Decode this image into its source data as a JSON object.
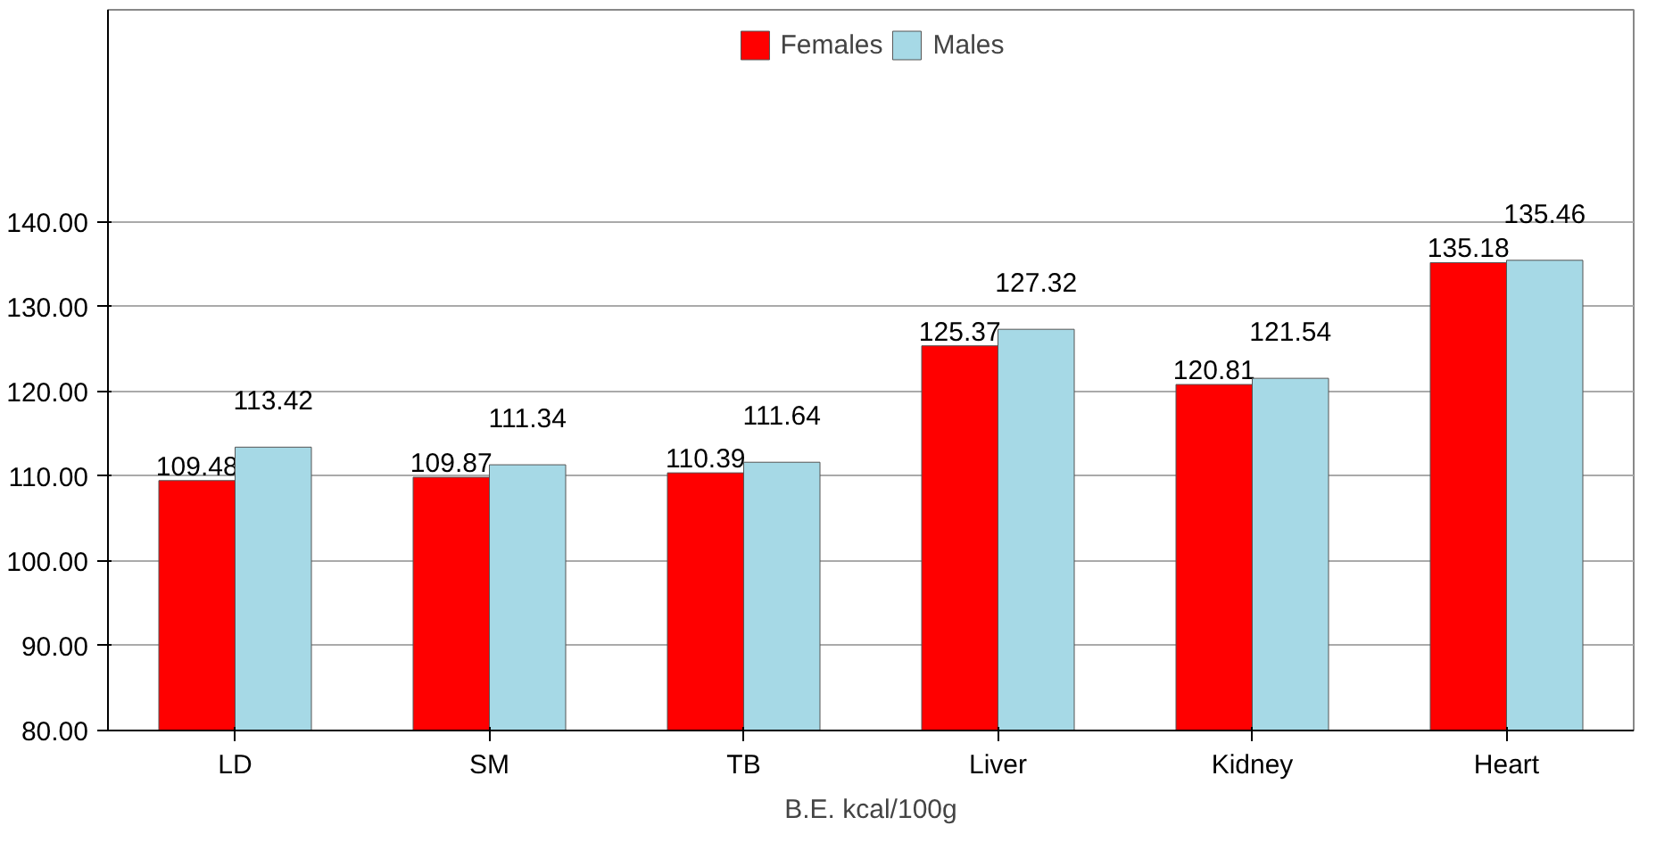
{
  "chart_data": {
    "type": "bar",
    "xlabel": "B.E. kcal/100g",
    "categories": [
      "LD",
      "SM",
      "TB",
      "Liver",
      "Kidney",
      "Heart"
    ],
    "series": [
      {
        "name": "Females",
        "color": "#ff0000",
        "values": [
          109.48,
          109.87,
          110.39,
          125.37,
          120.81,
          135.18
        ]
      },
      {
        "name": "Males",
        "color": "#a6d9e6",
        "values": [
          113.42,
          111.34,
          111.64,
          127.32,
          121.54,
          135.46
        ]
      }
    ],
    "ylim": [
      80,
      165
    ],
    "yticks": [
      {
        "value": 80,
        "label": "80.00"
      },
      {
        "value": 90,
        "label": "90.00"
      },
      {
        "value": 100,
        "label": "100.00"
      },
      {
        "value": 110,
        "label": "110.00"
      },
      {
        "value": 120,
        "label": "120.00"
      },
      {
        "value": 130,
        "label": "130.00"
      },
      {
        "value": 140,
        "label": "140.00"
      }
    ],
    "grid": "y",
    "legend": "top",
    "data_labels": true
  }
}
